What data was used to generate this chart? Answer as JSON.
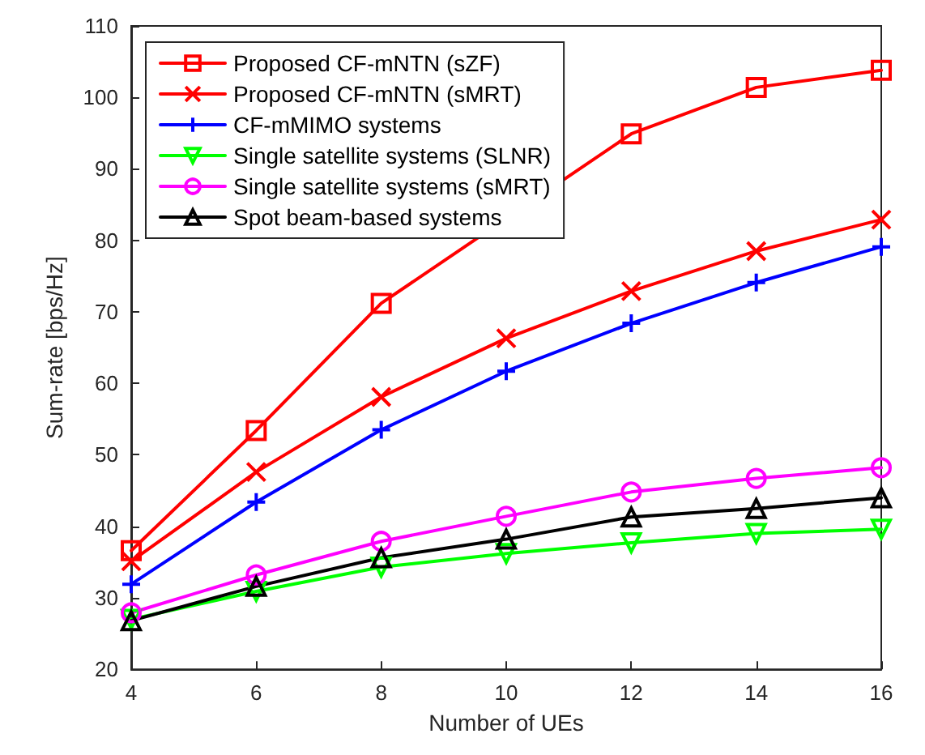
{
  "chart_data": {
    "type": "line",
    "xlabel": "Number of UEs",
    "ylabel": "Sum-rate [bps/Hz]",
    "x": [
      4,
      6,
      8,
      10,
      12,
      14,
      16
    ],
    "xlim": [
      4,
      16
    ],
    "xticks": [
      4,
      6,
      8,
      10,
      12,
      14,
      16
    ],
    "ylim": [
      20,
      110
    ],
    "yticks": [
      20,
      30,
      40,
      50,
      60,
      70,
      80,
      90,
      100,
      110
    ],
    "grid": false,
    "legend": "top left",
    "line_style": "solid",
    "series": [
      {
        "name": "Proposed CF-mNTN (sZF)",
        "color": "#ff0000",
        "marker": "square",
        "values": [
          36.6,
          53.4,
          71.2,
          null,
          94.9,
          101.4,
          103.8
        ]
      },
      {
        "name": "Proposed CF-mNTN (sMRT)",
        "color": "#ff0000",
        "marker": "cross",
        "values": [
          35.1,
          47.6,
          58.1,
          66.3,
          72.9,
          78.5,
          82.9
        ]
      },
      {
        "name": "CF-mMIMO systems",
        "color": "#0000ff",
        "marker": "plus",
        "values": [
          31.9,
          43.4,
          53.5,
          61.7,
          68.4,
          74.1,
          79.1
        ]
      },
      {
        "name": "Single satellite systems (SLNR)",
        "color": "#00ff00",
        "marker": "triangle-down",
        "values": [
          27.0,
          30.9,
          34.3,
          36.2,
          37.7,
          39.0,
          39.6
        ]
      },
      {
        "name": "Single satellite systems (sMRT)",
        "color": "#ff00ff",
        "marker": "circle",
        "values": [
          27.9,
          33.2,
          37.9,
          41.4,
          44.8,
          46.7,
          48.2
        ]
      },
      {
        "name": "Spot beam-based systems",
        "color": "#000000",
        "marker": "triangle",
        "values": [
          26.8,
          31.6,
          35.6,
          38.2,
          41.3,
          42.5,
          44.0
        ]
      }
    ]
  }
}
